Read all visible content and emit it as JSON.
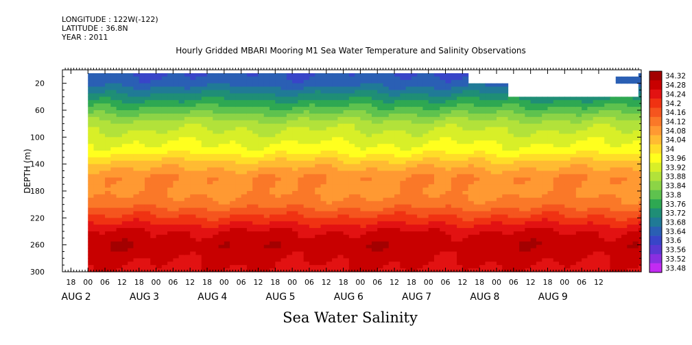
{
  "header": {
    "longitude": "LONGITUDE : 122W(-122)",
    "latitude": "LATITUDE : 36.8N",
    "year": "YEAR : 2011"
  },
  "chart_data": {
    "type": "heatmap",
    "title": "Hourly Gridded MBARI Mooring M1 Sea Water Temperature and Salinity Observations",
    "xlabel": "Sea Water Salinity",
    "ylabel": "DEPTH (m)",
    "ylim": [
      300,
      0
    ],
    "y_ticks": [
      20,
      60,
      100,
      140,
      180,
      220,
      260,
      300
    ],
    "x_range_hours": [
      0,
      204
    ],
    "x_hour_ticks": [
      "18",
      "00",
      "06",
      "12",
      "18",
      "00",
      "06",
      "12",
      "18",
      "00",
      "06",
      "12",
      "18",
      "00",
      "06",
      "12",
      "18",
      "00",
      "06",
      "12",
      "18",
      "00",
      "06",
      "12",
      "18",
      "00",
      "06",
      "12",
      "18",
      "00",
      "06",
      "12"
    ],
    "x_day_labels": [
      {
        "label": "AUG",
        "day": "2"
      },
      {
        "label": "AUG",
        "day": "3"
      },
      {
        "label": "AUG",
        "day": "4"
      },
      {
        "label": "AUG",
        "day": "5"
      },
      {
        "label": "AUG",
        "day": "6"
      },
      {
        "label": "AUG",
        "day": "7"
      },
      {
        "label": "AUG",
        "day": "8"
      },
      {
        "label": "AUG",
        "day": "9"
      }
    ],
    "data_start_hour": 9,
    "colorbar": {
      "levels": [
        "34.32",
        "34.28",
        "34.24",
        "34.2",
        "34.16",
        "34.12",
        "34.08",
        "34.04",
        "34",
        "33.96",
        "33.92",
        "33.88",
        "33.84",
        "33.8",
        "33.76",
        "33.72",
        "33.68",
        "33.64",
        "33.6",
        "33.56",
        "33.52",
        "33.48"
      ],
      "colors": [
        "#a30000",
        "#c80000",
        "#e21212",
        "#f03212",
        "#f5551e",
        "#fa7828",
        "#ff9932",
        "#ffbb32",
        "#ffdd28",
        "#ffff1e",
        "#d8ef28",
        "#b2e23a",
        "#8cd446",
        "#5ec24e",
        "#2ea852",
        "#1f8e76",
        "#207a96",
        "#2a5fb4",
        "#3845c8",
        "#5a38d2",
        "#8a2fe0",
        "#c22bf2"
      ]
    },
    "depth_profile": [
      {
        "depth": 5,
        "value": 33.6
      },
      {
        "depth": 20,
        "value": 33.62
      },
      {
        "depth": 40,
        "value": 33.7
      },
      {
        "depth": 60,
        "value": 33.78
      },
      {
        "depth": 80,
        "value": 33.86
      },
      {
        "depth": 100,
        "value": 33.9
      },
      {
        "depth": 120,
        "value": 33.94
      },
      {
        "depth": 140,
        "value": 34.02
      },
      {
        "depth": 160,
        "value": 34.08
      },
      {
        "depth": 180,
        "value": 34.07
      },
      {
        "depth": 200,
        "value": 34.1
      },
      {
        "depth": 220,
        "value": 34.17
      },
      {
        "depth": 240,
        "value": 34.24
      },
      {
        "depth": 260,
        "value": 34.27
      },
      {
        "depth": 280,
        "value": 34.25
      },
      {
        "depth": 300,
        "value": 34.23
      }
    ],
    "missing_regions": [
      {
        "hour_start": 144,
        "hour_end": 196,
        "depth_start": 0,
        "depth_end": 18
      },
      {
        "hour_start": 158,
        "hour_end": 204,
        "depth_start": 18,
        "depth_end": 40
      },
      {
        "hour_start": 189,
        "hour_end": 204,
        "depth_start": 0,
        "depth_end": 10
      }
    ],
    "grid": false,
    "legend": "right"
  }
}
